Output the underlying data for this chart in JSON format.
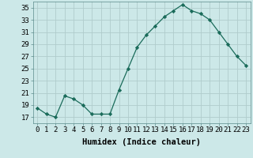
{
  "x": [
    0,
    1,
    2,
    3,
    4,
    5,
    6,
    7,
    8,
    9,
    10,
    11,
    12,
    13,
    14,
    15,
    16,
    17,
    18,
    19,
    20,
    21,
    22,
    23
  ],
  "y": [
    18.5,
    17.5,
    17.0,
    20.5,
    20.0,
    19.0,
    17.5,
    17.5,
    17.5,
    21.5,
    25.0,
    28.5,
    30.5,
    32.0,
    33.5,
    34.5,
    35.5,
    34.5,
    34.0,
    33.0,
    31.0,
    29.0,
    27.0,
    25.5
  ],
  "line_color": "#1a6b5a",
  "marker": "D",
  "marker_size": 2.2,
  "bg_color": "#cce8e8",
  "grid_color": "#b0cccc",
  "xlabel": "Humidex (Indice chaleur)",
  "ylabel": "",
  "ylim": [
    16,
    36
  ],
  "yticks": [
    17,
    19,
    21,
    23,
    25,
    27,
    29,
    31,
    33,
    35
  ],
  "xticks": [
    0,
    1,
    2,
    3,
    4,
    5,
    6,
    7,
    8,
    9,
    10,
    11,
    12,
    13,
    14,
    15,
    16,
    17,
    18,
    19,
    20,
    21,
    22,
    23
  ],
  "xlim": [
    -0.5,
    23.5
  ],
  "label_fontsize": 7.5,
  "tick_fontsize": 6.5
}
